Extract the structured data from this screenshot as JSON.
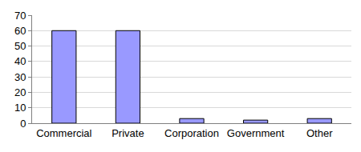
{
  "chart_data": {
    "type": "bar",
    "categories": [
      "Commercial",
      "Private",
      "Corporation",
      "Government",
      "Other"
    ],
    "values": [
      60,
      60,
      3,
      2,
      3
    ],
    "color": "#9999ff",
    "ylim": [
      0,
      70
    ],
    "yticks": [
      0,
      10,
      20,
      30,
      40,
      50,
      60,
      70
    ],
    "grid": true
  }
}
